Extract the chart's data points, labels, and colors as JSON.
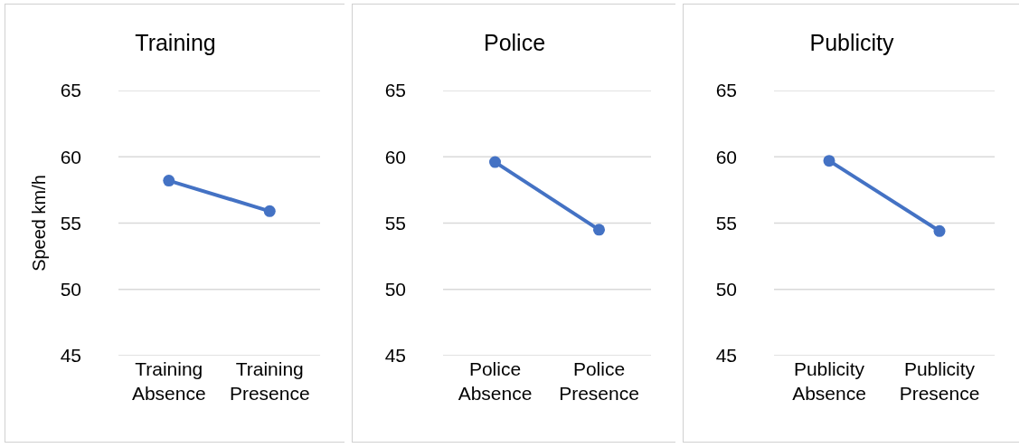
{
  "chart_data": [
    {
      "type": "line",
      "title": "Training",
      "ylabel": "Speed km/h",
      "categories": [
        "Training Absence",
        "Training Presence"
      ],
      "series": [
        {
          "color": "#4472c4",
          "values": [
            58.2,
            55.9
          ]
        }
      ],
      "ylim": [
        45,
        65
      ],
      "yticks": [
        45,
        50,
        55,
        60,
        65
      ],
      "grid": "y",
      "marker": "circle",
      "line_style": "solid"
    },
    {
      "type": "line",
      "title": "Police",
      "categories": [
        "Police Absence",
        "Police Presence"
      ],
      "series": [
        {
          "color": "#4472c4",
          "values": [
            59.6,
            54.5
          ]
        }
      ],
      "ylim": [
        45,
        65
      ],
      "yticks": [
        45,
        50,
        55,
        60,
        65
      ],
      "grid": "y",
      "marker": "circle",
      "line_style": "solid"
    },
    {
      "type": "line",
      "title": "Publicity",
      "categories": [
        "Publicity Absence",
        "Publicity Presence"
      ],
      "series": [
        {
          "color": "#4472c4",
          "values": [
            59.7,
            54.4
          ]
        }
      ],
      "ylim": [
        45,
        65
      ],
      "yticks": [
        45,
        50,
        55,
        60,
        65
      ],
      "grid": "y",
      "marker": "circle",
      "line_style": "solid"
    }
  ]
}
